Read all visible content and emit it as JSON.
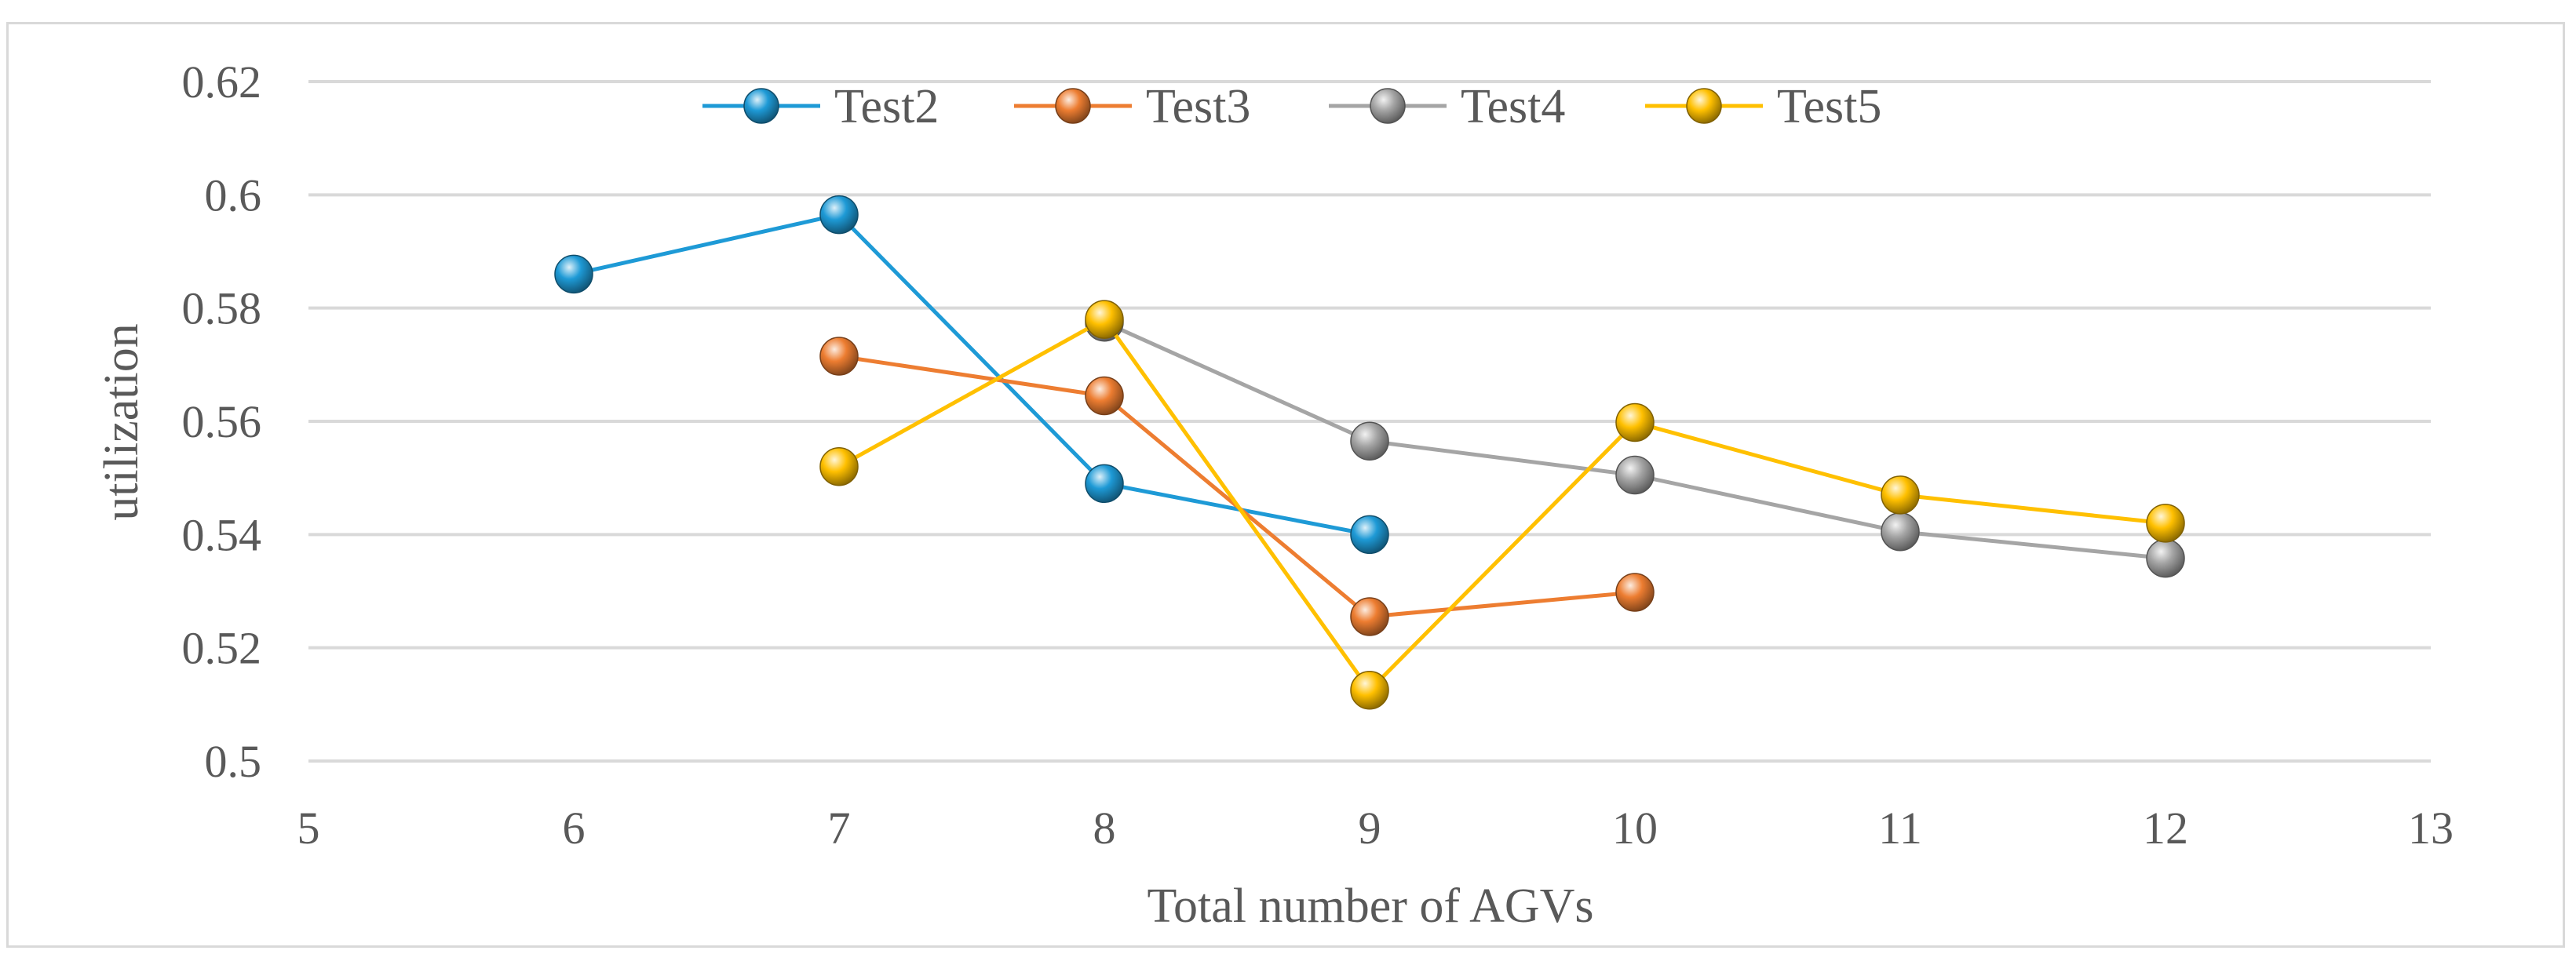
{
  "chart_data": {
    "type": "line",
    "title": "",
    "xlabel": "Total number of AGVs",
    "ylabel": "utilization",
    "xlim": [
      5,
      13
    ],
    "ylim": [
      0.5,
      0.62
    ],
    "x_ticks": [
      5,
      6,
      7,
      8,
      9,
      10,
      11,
      12,
      13
    ],
    "x_tick_labels": [
      "5",
      "6",
      "7",
      "8",
      "9",
      "10",
      "11",
      "12",
      "13"
    ],
    "y_ticks": [
      0.5,
      0.52,
      0.54,
      0.56,
      0.58,
      0.6,
      0.62
    ],
    "y_tick_labels": [
      "0.5",
      "0.52",
      "0.54",
      "0.56",
      "0.58",
      "0.6",
      "0.62"
    ],
    "grid": "horizontal",
    "legend_position": "top-center",
    "series": [
      {
        "name": "Test2",
        "color": "#1e9ad6",
        "x": [
          6,
          7,
          8,
          9
        ],
        "y": [
          0.586,
          0.5965,
          0.549,
          0.54
        ]
      },
      {
        "name": "Test3",
        "color": "#ed7d31",
        "x": [
          7,
          8,
          9,
          10
        ],
        "y": [
          0.5715,
          0.5645,
          0.5255,
          0.5298
        ]
      },
      {
        "name": "Test4",
        "color": "#a5a5a5",
        "x": [
          8,
          9,
          10,
          11,
          12
        ],
        "y": [
          0.5775,
          0.5565,
          0.5505,
          0.5405,
          0.5358
        ]
      },
      {
        "name": "Test5",
        "color": "#ffc000",
        "x": [
          7,
          8,
          9,
          10,
          11,
          12
        ],
        "y": [
          0.552,
          0.578,
          0.5125,
          0.5598,
          0.547,
          0.542
        ]
      }
    ]
  }
}
